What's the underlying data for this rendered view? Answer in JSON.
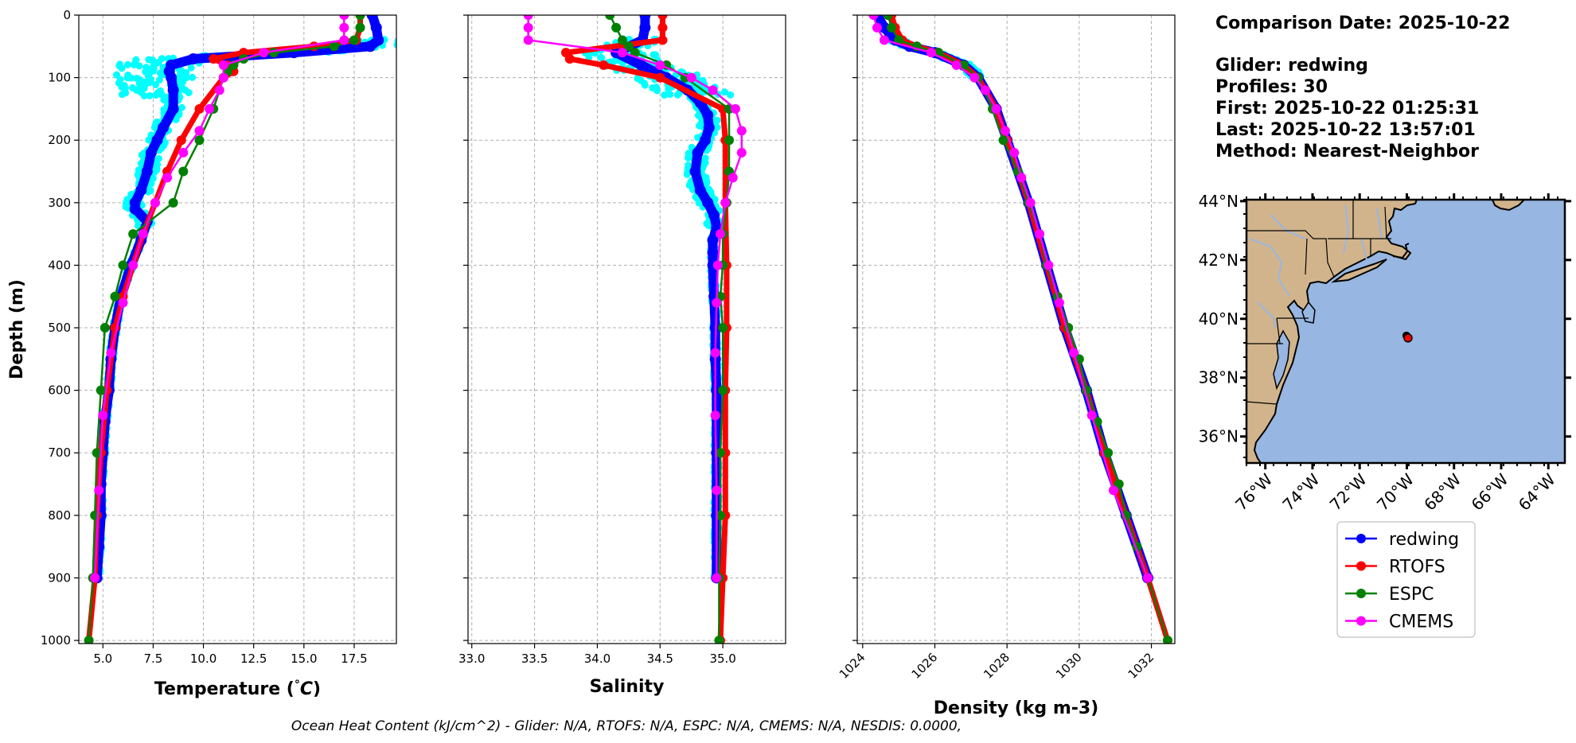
{
  "chart_data": [
    {
      "type": "line",
      "xlabel": "Temperature (",
      "xlabel_unit": "°C",
      "xlabel_close": ")",
      "ylabel": "Depth (m)",
      "xlim": [
        3.8,
        19.6
      ],
      "ylim": [
        1005,
        0
      ],
      "xticks": [
        "5.0",
        "7.5",
        "10.0",
        "12.5",
        "15.0",
        "17.5"
      ],
      "xtick_values": [
        5,
        7.5,
        10,
        12.5,
        15,
        17.5
      ],
      "yticks": [
        0,
        100,
        200,
        300,
        400,
        500,
        600,
        700,
        800,
        900,
        1000
      ],
      "series": [
        {
          "name": "redwing",
          "color": "#0000ff",
          "depth": [
            0,
            20,
            40,
            50,
            60,
            70,
            80,
            90,
            100,
            120,
            150,
            180,
            200,
            220,
            250,
            280,
            300,
            310,
            330,
            360,
            400,
            450,
            500,
            550,
            600,
            650,
            700,
            750,
            800,
            850,
            900
          ],
          "values": [
            18.4,
            18.6,
            18.7,
            18.3,
            14.5,
            9.5,
            8.4,
            8.3,
            8.4,
            8.5,
            8.5,
            8.0,
            7.7,
            7.4,
            7.2,
            6.9,
            6.6,
            6.6,
            7.2,
            6.9,
            6.4,
            5.9,
            5.6,
            5.4,
            5.3,
            5.1,
            5.0,
            4.9,
            4.9,
            4.8,
            4.7
          ]
        },
        {
          "name": "RTOFS",
          "color": "#ff0000",
          "depth": [
            0,
            20,
            40,
            50,
            60,
            70,
            80,
            90,
            100,
            150,
            200,
            250,
            300,
            350,
            400,
            450,
            500,
            600,
            700,
            800,
            900,
            1000
          ],
          "values": [
            17.8,
            17.8,
            17.6,
            15.5,
            12.0,
            10.5,
            11.2,
            11.5,
            11.0,
            9.8,
            8.9,
            8.2,
            7.6,
            7.0,
            6.5,
            6.0,
            5.6,
            5.2,
            4.9,
            4.7,
            4.6,
            4.3
          ]
        },
        {
          "name": "ESPC",
          "color": "#008000",
          "depth": [
            0,
            20,
            40,
            50,
            60,
            70,
            80,
            90,
            100,
            150,
            200,
            250,
            300,
            350,
            400,
            450,
            500,
            600,
            700,
            800,
            900,
            1000
          ],
          "values": [
            17.8,
            17.8,
            17.5,
            16.5,
            13.5,
            12.0,
            11.5,
            11.2,
            11.0,
            10.5,
            9.8,
            9.0,
            8.5,
            6.5,
            6.0,
            5.6,
            5.1,
            4.9,
            4.7,
            4.6,
            4.5,
            4.3
          ]
        },
        {
          "name": "CMEMS",
          "color": "#ff00ff",
          "depth": [
            0,
            20,
            40,
            60,
            80,
            100,
            120,
            150,
            185,
            220,
            260,
            300,
            350,
            400,
            460,
            540,
            640,
            760,
            900
          ],
          "values": [
            17.0,
            17.0,
            17.0,
            13.0,
            11.0,
            11.0,
            10.8,
            10.3,
            9.8,
            9.0,
            8.2,
            7.6,
            7.0,
            6.5,
            6.0,
            5.4,
            5.0,
            4.8,
            4.6
          ]
        }
      ],
      "glider_cloud_color": "#00ffff"
    },
    {
      "type": "line",
      "xlabel": "Salinity",
      "xlim": [
        32.97,
        35.5
      ],
      "ylim": [
        1005,
        0
      ],
      "xticks": [
        "33.0",
        "33.5",
        "34.0",
        "34.5",
        "35.0"
      ],
      "xtick_values": [
        33.0,
        33.5,
        34.0,
        34.5,
        35.0
      ],
      "series": [
        {
          "name": "redwing",
          "color": "#0000ff",
          "depth": [
            0,
            20,
            40,
            60,
            80,
            100,
            120,
            140,
            160,
            180,
            200,
            220,
            250,
            280,
            300,
            320,
            340,
            360,
            380,
            400,
            450,
            500,
            550,
            600,
            700,
            800,
            900
          ],
          "values": [
            34.38,
            34.38,
            34.36,
            34.15,
            34.35,
            34.55,
            34.72,
            34.82,
            34.88,
            34.89,
            34.86,
            34.8,
            34.78,
            34.82,
            34.88,
            34.93,
            34.95,
            34.92,
            34.92,
            34.92,
            34.93,
            34.94,
            34.94,
            34.95,
            34.95,
            34.95,
            34.95
          ]
        },
        {
          "name": "RTOFS",
          "color": "#ff0000",
          "depth": [
            0,
            20,
            40,
            60,
            70,
            80,
            100,
            150,
            200,
            300,
            400,
            500,
            600,
            700,
            800,
            900,
            1000
          ],
          "values": [
            34.52,
            34.52,
            34.52,
            33.75,
            33.78,
            34.05,
            34.5,
            35.0,
            35.02,
            35.02,
            35.03,
            35.03,
            35.02,
            35.02,
            35.02,
            35.0,
            34.98
          ]
        },
        {
          "name": "ESPC",
          "color": "#008000",
          "depth": [
            0,
            20,
            40,
            50,
            60,
            80,
            100,
            150,
            200,
            250,
            300,
            350,
            400,
            450,
            500,
            600,
            700,
            800,
            900,
            1000
          ],
          "values": [
            34.1,
            34.15,
            34.2,
            34.25,
            34.3,
            34.55,
            34.7,
            35.05,
            35.05,
            35.05,
            35.03,
            35.0,
            35.0,
            34.98,
            35.0,
            35.0,
            34.98,
            34.98,
            34.97,
            34.97
          ]
        },
        {
          "name": "CMEMS",
          "color": "#ff00ff",
          "depth": [
            0,
            20,
            40,
            60,
            80,
            100,
            120,
            150,
            185,
            220,
            260,
            300,
            350,
            400,
            460,
            540,
            640,
            760,
            900
          ],
          "values": [
            33.45,
            33.45,
            33.45,
            34.2,
            34.5,
            34.75,
            34.92,
            35.1,
            35.15,
            35.15,
            35.08,
            35.02,
            34.98,
            34.96,
            34.95,
            34.94,
            34.94,
            34.95,
            34.95
          ]
        }
      ],
      "glider_cloud_color": "#00ffff"
    },
    {
      "type": "line",
      "xlabel": "Density (kg m-3)",
      "xlim": [
        1023.85,
        1032.65
      ],
      "ylim": [
        1005,
        0
      ],
      "xticks": [
        "1024",
        "1026",
        "1028",
        "1030",
        "1032"
      ],
      "xtick_values": [
        1024,
        1026,
        1028,
        1030,
        1032
      ],
      "series": [
        {
          "name": "redwing",
          "color": "#0000ff",
          "depth": [
            0,
            20,
            40,
            50,
            60,
            80,
            100,
            150,
            200,
            300,
            400,
            500,
            600,
            700,
            800,
            900
          ],
          "values": [
            1024.4,
            1024.6,
            1024.9,
            1025.3,
            1026.0,
            1026.8,
            1027.2,
            1027.7,
            1028.0,
            1028.6,
            1029.1,
            1029.6,
            1030.2,
            1030.7,
            1031.3,
            1031.9
          ]
        },
        {
          "name": "RTOFS",
          "color": "#ff0000",
          "depth": [
            0,
            20,
            40,
            50,
            60,
            80,
            100,
            150,
            200,
            300,
            400,
            500,
            600,
            700,
            800,
            900,
            1000
          ],
          "values": [
            1024.8,
            1024.9,
            1025.1,
            1025.5,
            1026.1,
            1026.8,
            1027.2,
            1027.7,
            1028.0,
            1028.6,
            1029.1,
            1029.6,
            1030.2,
            1030.7,
            1031.3,
            1031.9,
            1032.45
          ]
        },
        {
          "name": "ESPC",
          "color": "#008000",
          "depth": [
            0,
            20,
            40,
            50,
            60,
            80,
            100,
            150,
            200,
            250,
            300,
            350,
            400,
            450,
            500,
            550,
            600,
            650,
            700,
            750,
            800,
            850,
            900,
            1000
          ],
          "values": [
            1024.7,
            1024.8,
            1025.0,
            1025.5,
            1026.1,
            1026.8,
            1027.2,
            1027.6,
            1027.9,
            1028.3,
            1028.6,
            1028.9,
            1029.1,
            1029.4,
            1029.7,
            1030.0,
            1030.2,
            1030.5,
            1030.8,
            1031.1,
            1031.3,
            1031.6,
            1031.9,
            1032.45
          ]
        },
        {
          "name": "CMEMS",
          "color": "#ff00ff",
          "depth": [
            0,
            20,
            40,
            60,
            80,
            100,
            120,
            150,
            185,
            220,
            260,
            300,
            350,
            400,
            460,
            540,
            640,
            760,
            900
          ],
          "values": [
            1024.3,
            1024.4,
            1024.6,
            1025.9,
            1026.6,
            1027.1,
            1027.4,
            1027.7,
            1027.95,
            1028.2,
            1028.4,
            1028.65,
            1028.9,
            1029.15,
            1029.45,
            1029.85,
            1030.35,
            1030.95,
            1031.9
          ]
        }
      ],
      "glider_cloud_color": "#00ffff"
    }
  ],
  "info": {
    "lines": [
      "Comparison Date: 2025-10-22",
      "",
      "Glider: redwing",
      "Profiles: 30",
      "First: 2025-10-22 01:25:31",
      "Last: 2025-10-22 13:57:01",
      "Method: Nearest-Neighbor"
    ]
  },
  "map": {
    "lat_labels": [
      "44°N",
      "42°N",
      "40°N",
      "38°N",
      "36°N"
    ],
    "lat_values": [
      44,
      42,
      40,
      38,
      36
    ],
    "lon_labels": [
      "76°W",
      "74°W",
      "72°W",
      "70°W",
      "68°W",
      "66°W",
      "64°W"
    ],
    "lon_values": [
      -76,
      -74,
      -72,
      -70,
      -68,
      -66,
      -64
    ],
    "lon_range": [
      -76.8,
      -63.3
    ],
    "lat_range": [
      35.1,
      44.05
    ],
    "land_color": "#d2b48c",
    "ocean_color": "#97b6e1",
    "glider_position": {
      "lon": -69.95,
      "lat": 39.35
    }
  },
  "legend": {
    "items": [
      {
        "name": "redwing",
        "color": "#0000ff"
      },
      {
        "name": "RTOFS",
        "color": "#ff0000"
      },
      {
        "name": "ESPC",
        "color": "#008000"
      },
      {
        "name": "CMEMS",
        "color": "#ff00ff"
      }
    ]
  },
  "footer": "Ocean Heat Content (kJ/cm^2) - Glider: N/A,  RTOFS: N/A,  ESPC: N/A,  CMEMS: N/A,  NESDIS: 0.0000,"
}
